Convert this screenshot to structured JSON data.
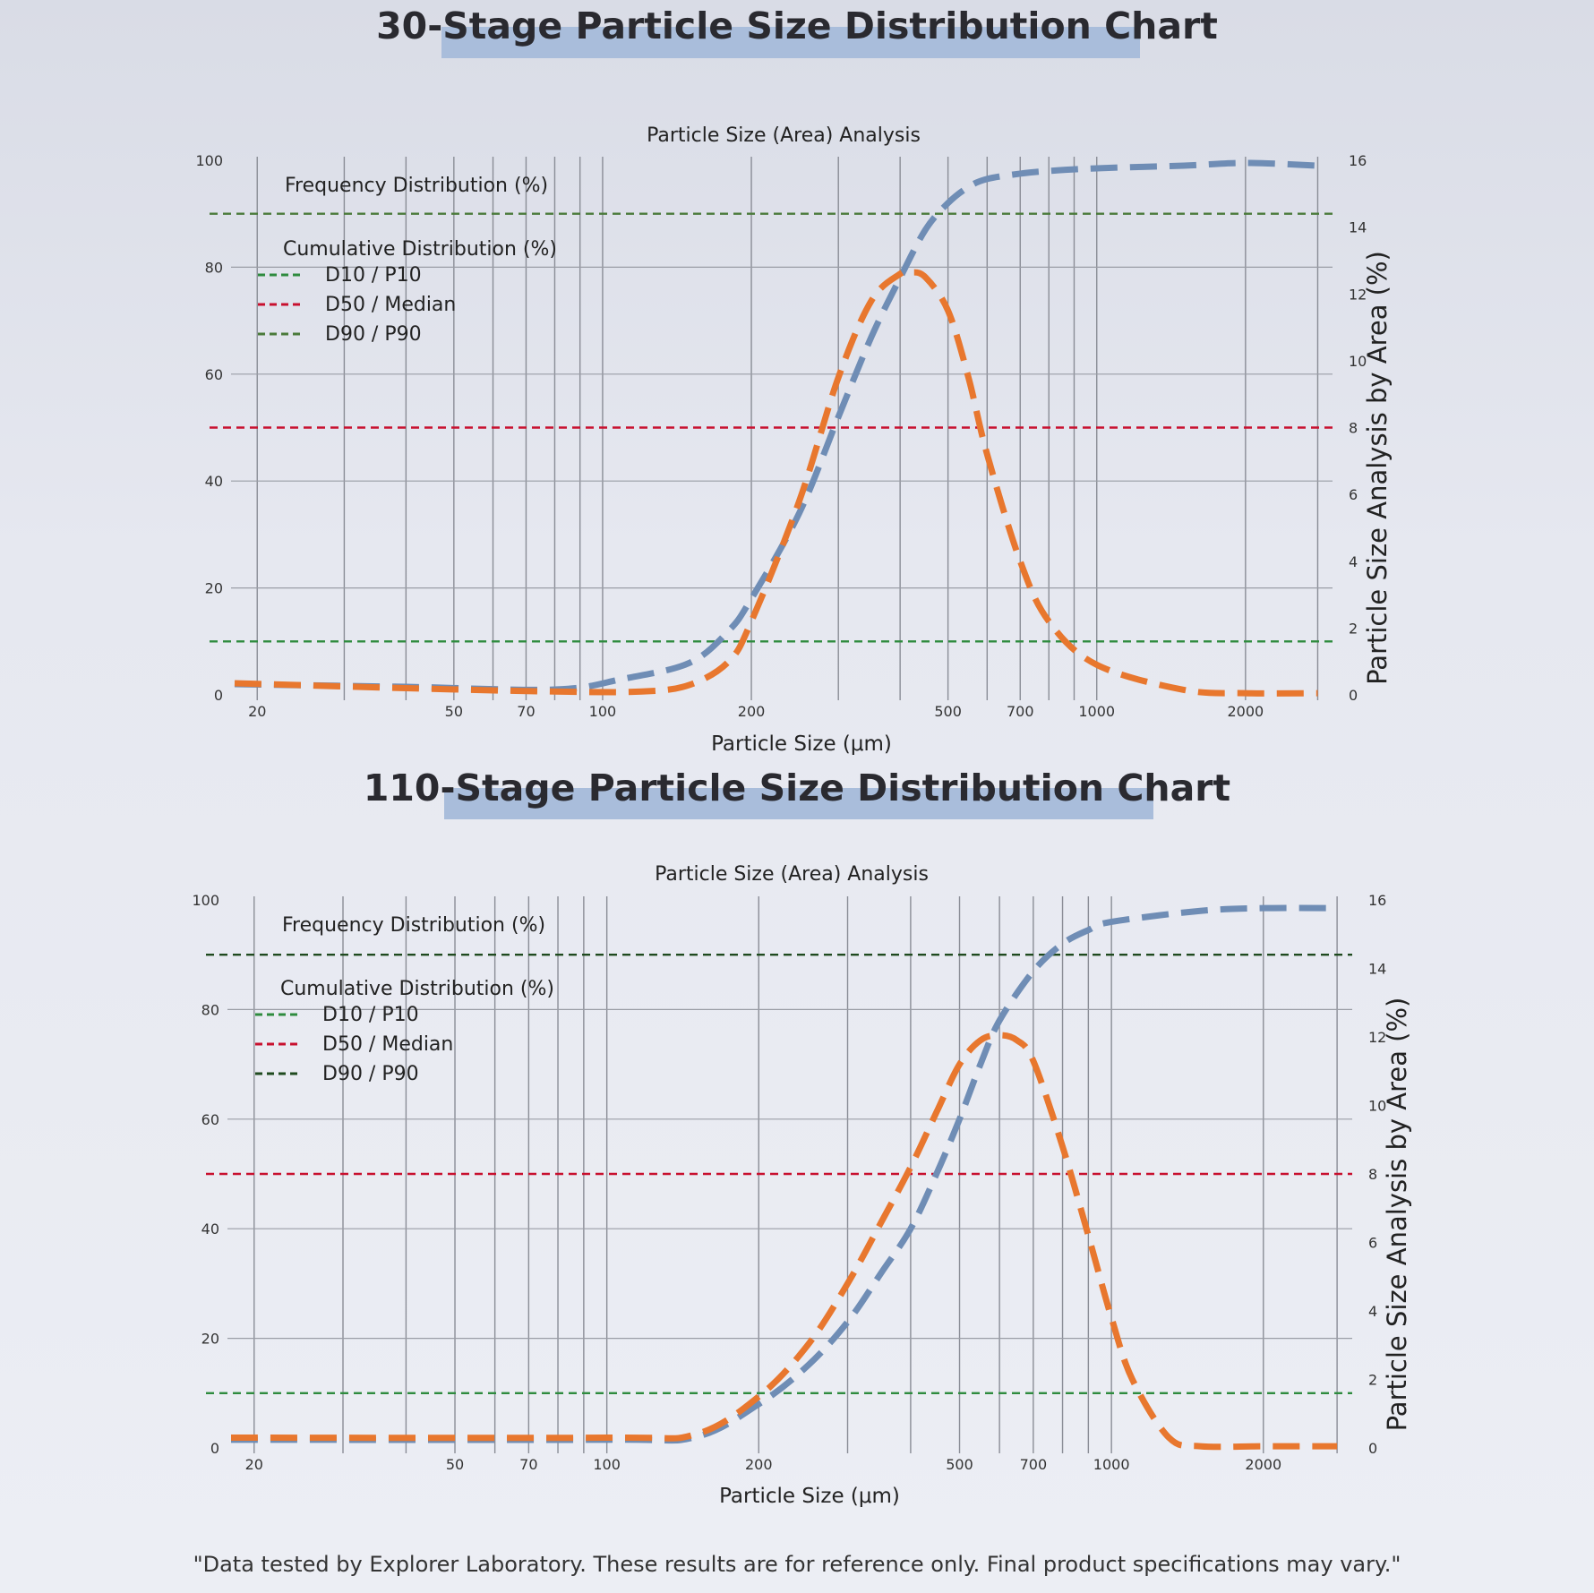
{
  "chart_data": [
    {
      "type": "line",
      "title": "30-Stage Particle Size Distribution Chart",
      "subtitle": "Particle Size (Area) Analysis",
      "xlabel": "Particle Size (μm)",
      "ylabel_right": "Particle Size Analysis by Area (%)",
      "x_scale": "log",
      "xlim": [
        18,
        3000
      ],
      "ylim_left": [
        0,
        100
      ],
      "ylim_right": [
        0,
        16
      ],
      "x_ticks": [
        20,
        50,
        70,
        100,
        200,
        500,
        700,
        1000,
        2000
      ],
      "x_tick_labels": [
        "20",
        "50",
        "70",
        "100",
        "200",
        "500",
        "700",
        "1000",
        "2000"
      ],
      "y_left_ticks": [
        0,
        20,
        40,
        60,
        80,
        100
      ],
      "y_left_tick_labels": [
        "0",
        "20",
        "40",
        "60",
        "80",
        "100"
      ],
      "y_right_ticks": [
        0,
        2,
        4,
        6,
        8,
        10,
        12,
        14,
        16
      ],
      "y_right_tick_labels": [
        "0",
        "2",
        "4",
        "6",
        "8",
        "10",
        "12",
        "14",
        "16"
      ],
      "vertical_gridlines": [
        20,
        30,
        40,
        50,
        60,
        70,
        80,
        90,
        100,
        200,
        300,
        400,
        500,
        600,
        700,
        800,
        900,
        1000,
        2000,
        2800
      ],
      "grid": true,
      "legend_title_1": "Frequency Distribution (%)",
      "legend_title_2": "Cumulative Distribution (%)",
      "legend_position": "top-left",
      "reference_lines": [
        {
          "name": "D10 / P10",
          "y": 10,
          "color": "#2e8b3e"
        },
        {
          "name": "D50 / Median",
          "y": 50,
          "color": "#c8102e"
        },
        {
          "name": "D90 / P90",
          "y": 90,
          "color": "#4a7a3a"
        }
      ],
      "series": [
        {
          "axis": "left",
          "color": "#6f8db5",
          "x": [
            18,
            40,
            80,
            110,
            150,
            180,
            200,
            250,
            300,
            350,
            400,
            450,
            500,
            550,
            600,
            700,
            800,
            1000,
            1500,
            2000,
            2800
          ],
          "values": [
            2,
            1.5,
            1,
            3,
            6,
            12,
            18,
            34,
            52,
            67,
            78,
            87,
            92,
            95,
            96.5,
            97.5,
            98,
            98.5,
            99,
            99.5,
            99
          ]
        },
        {
          "axis": "right",
          "color": "#e8772e",
          "x": [
            18,
            40,
            80,
            120,
            150,
            180,
            200,
            250,
            300,
            350,
            400,
            420,
            450,
            500,
            550,
            600,
            700,
            800,
            1000,
            1500,
            2000,
            2800
          ],
          "values": [
            0.35,
            0.2,
            0.1,
            0.1,
            0.3,
            1.0,
            2.2,
            5.8,
            9.5,
            11.8,
            12.6,
            12.65,
            12.5,
            11.5,
            9.5,
            7.2,
            4.0,
            2.2,
            0.9,
            0.15,
            0.05,
            0.05
          ]
        }
      ]
    },
    {
      "type": "line",
      "title": "110-Stage Particle Size Distribution Chart",
      "subtitle": "Particle Size (Area) Analysis",
      "xlabel": "Particle Size (μm)",
      "ylabel_right": "Particle Size Analysis by Area (%)",
      "x_scale": "log",
      "xlim": [
        18,
        3000
      ],
      "ylim_left": [
        0,
        100
      ],
      "ylim_right": [
        0,
        16
      ],
      "x_ticks": [
        20,
        50,
        70,
        100,
        200,
        500,
        700,
        1000,
        2000
      ],
      "x_tick_labels": [
        "20",
        "50",
        "70",
        "100",
        "200",
        "500",
        "700",
        "1000",
        "2000"
      ],
      "y_left_ticks": [
        0,
        20,
        40,
        60,
        80,
        100
      ],
      "y_left_tick_labels": [
        "0",
        "20",
        "40",
        "60",
        "80",
        "100"
      ],
      "y_right_ticks": [
        0,
        2,
        4,
        6,
        8,
        10,
        12,
        14,
        16
      ],
      "y_right_tick_labels": [
        "0",
        "2",
        "4",
        "6",
        "8",
        "10",
        "12",
        "14",
        "16"
      ],
      "vertical_gridlines": [
        20,
        30,
        40,
        50,
        60,
        70,
        80,
        90,
        100,
        200,
        300,
        400,
        500,
        600,
        700,
        800,
        900,
        1000,
        2000,
        2800
      ],
      "grid": true,
      "legend_title_1": "Frequency Distribution (%)",
      "legend_title_2": "Cumulative Distribution (%)",
      "legend_position": "top-left",
      "reference_lines": [
        {
          "name": "D10 / P10",
          "y": 10,
          "color": "#2e8b3e"
        },
        {
          "name": "D50 / Median",
          "y": 50,
          "color": "#c8102e"
        },
        {
          "name": "D90 / P90",
          "y": 90,
          "color": "#1f4a1f"
        }
      ],
      "series": [
        {
          "axis": "left",
          "color": "#6f8db5",
          "x": [
            18,
            100,
            150,
            200,
            250,
            300,
            350,
            400,
            450,
            500,
            550,
            600,
            700,
            800,
            900,
            1000,
            1500,
            2000,
            2800
          ],
          "values": [
            1.5,
            1.5,
            2,
            8,
            15,
            23,
            32,
            40,
            50,
            60,
            70,
            78,
            87,
            92,
            94.5,
            96,
            98,
            98.5,
            98.5
          ]
        },
        {
          "axis": "right",
          "color": "#e8772e",
          "x": [
            18,
            100,
            150,
            200,
            250,
            300,
            350,
            400,
            450,
            500,
            550,
            600,
            650,
            700,
            800,
            900,
            1000,
            1100,
            1300,
            1500,
            2000,
            2800
          ],
          "values": [
            0.3,
            0.3,
            0.4,
            1.5,
            3.0,
            4.8,
            6.6,
            8.2,
            9.8,
            11.2,
            11.9,
            12.05,
            11.9,
            11.3,
            8.8,
            6.2,
            3.8,
            2.0,
            0.3,
            0.05,
            0.05,
            0.05
          ]
        }
      ]
    }
  ],
  "footnote": "\"Data tested by Explorer Laboratory. These results are for reference only. Final product specifications may vary.\""
}
